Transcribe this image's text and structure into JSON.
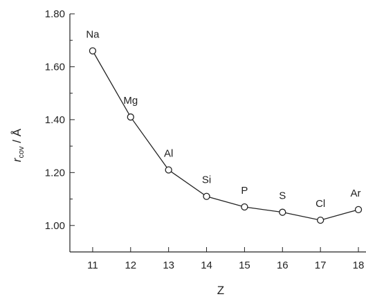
{
  "chart_data": {
    "type": "line",
    "title": "",
    "xlabel": "Z",
    "ylabel": {
      "symbol": "r",
      "subscript": "cov",
      "unit": " / Å"
    },
    "x": [
      11,
      12,
      13,
      14,
      15,
      16,
      17,
      18
    ],
    "x_tick_labels": [
      "11",
      "12",
      "13",
      "14",
      "15",
      "16",
      "17",
      "18"
    ],
    "xlim": [
      10.4,
      18.2
    ],
    "ylim": [
      0.9,
      1.8
    ],
    "y_tick_values": [
      1.0,
      1.2,
      1.4,
      1.6,
      1.8
    ],
    "y_tick_labels": [
      "1.00",
      "1.20",
      "1.40",
      "1.60",
      "1.80"
    ],
    "series": [
      {
        "values": [
          1.66,
          1.41,
          1.21,
          1.11,
          1.07,
          1.05,
          1.02,
          1.06
        ],
        "point_labels": [
          "Na",
          "Mg",
          "Al",
          "Si",
          "P",
          "S",
          "Cl",
          "Ar"
        ],
        "marker": "open-circle",
        "color": "#222222"
      }
    ],
    "grid": false,
    "legend": "none"
  }
}
